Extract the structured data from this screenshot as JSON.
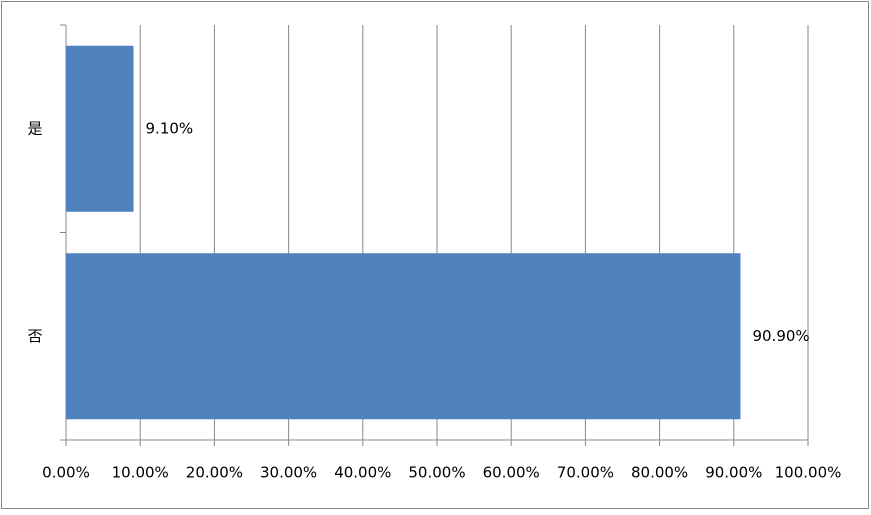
{
  "chart_data": {
    "type": "barh",
    "categories": [
      "是",
      "否"
    ],
    "values": [
      9.1,
      90.9
    ],
    "value_labels": [
      "9.10%",
      "90.90%"
    ],
    "color": "#4f81bd",
    "xlim": [
      0,
      100
    ],
    "xticks": [
      {
        "value": 0,
        "label": "0.00%"
      },
      {
        "value": 10,
        "label": "10.00%"
      },
      {
        "value": 20,
        "label": "20.00%"
      },
      {
        "value": 30,
        "label": "30.00%"
      },
      {
        "value": 40,
        "label": "40.00%"
      },
      {
        "value": 50,
        "label": "50.00%"
      },
      {
        "value": 60,
        "label": "60.00%"
      },
      {
        "value": 70,
        "label": "70.00%"
      },
      {
        "value": 80,
        "label": "80.00%"
      },
      {
        "value": 90,
        "label": "90.00%"
      },
      {
        "value": 100,
        "label": "100.00%"
      }
    ],
    "grid": true
  }
}
